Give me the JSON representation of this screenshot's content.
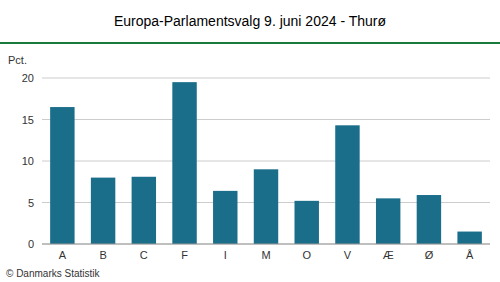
{
  "chart_data": {
    "type": "bar",
    "title": "Europa-Parlamentsvalg 9. juni 2024 - Thurø",
    "ylabel": "Pct.",
    "annotations": [
      "© Danmarks Statistik"
    ],
    "categories": [
      "A",
      "B",
      "C",
      "F",
      "I",
      "M",
      "O",
      "V",
      "Æ",
      "Ø",
      "Å"
    ],
    "values": [
      16.5,
      8.0,
      8.1,
      19.5,
      6.4,
      9.0,
      5.2,
      14.3,
      5.5,
      5.9,
      1.5
    ],
    "color": "#1a6e8a",
    "ylim": [
      0,
      20
    ],
    "yticks": [
      0,
      5,
      10,
      15,
      20
    ],
    "grid": true
  }
}
